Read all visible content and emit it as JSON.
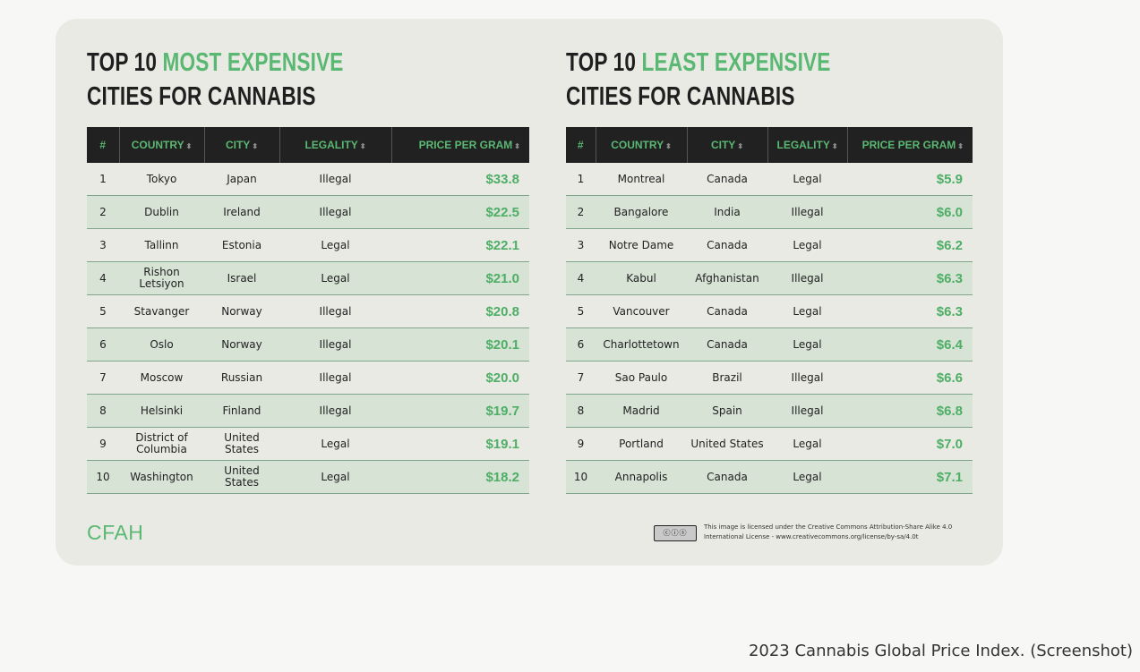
{
  "left_panel": {
    "title_prefix": "TOP 10 ",
    "title_accent": "MOST EXPENSIVE",
    "title_line2": "CITIES FOR CANNABIS",
    "headers": [
      "#",
      "COUNTRY",
      "CITY",
      "LEGALITY",
      "PRICE PER GRAM"
    ],
    "rows": [
      {
        "rank": "1",
        "country": "Tokyo",
        "city": "Japan",
        "legality": "Illegal",
        "price": "$33.8"
      },
      {
        "rank": "2",
        "country": "Dublin",
        "city": "Ireland",
        "legality": "Illegal",
        "price": "$22.5"
      },
      {
        "rank": "3",
        "country": "Tallinn",
        "city": "Estonia",
        "legality": "Legal",
        "price": "$22.1"
      },
      {
        "rank": "4",
        "country": "Rishon Letsiyon",
        "city": "Israel",
        "legality": "Legal",
        "price": "$21.0"
      },
      {
        "rank": "5",
        "country": "Stavanger",
        "city": "Norway",
        "legality": "Illegal",
        "price": "$20.8"
      },
      {
        "rank": "6",
        "country": "Oslo",
        "city": "Norway",
        "legality": "Illegal",
        "price": "$20.1"
      },
      {
        "rank": "7",
        "country": "Moscow",
        "city": "Russian",
        "legality": "Illegal",
        "price": "$20.0"
      },
      {
        "rank": "8",
        "country": "Helsinki",
        "city": "Finland",
        "legality": "Illegal",
        "price": "$19.7"
      },
      {
        "rank": "9",
        "country": "District of Columbia",
        "city": "United States",
        "legality": "Legal",
        "price": "$19.1"
      },
      {
        "rank": "10",
        "country": "Washington",
        "city": "United States",
        "legality": "Legal",
        "price": "$18.2"
      }
    ]
  },
  "right_panel": {
    "title_prefix": "TOP 10 ",
    "title_accent": "LEAST EXPENSIVE",
    "title_line2": "CITIES FOR CANNABIS",
    "headers": [
      "#",
      "COUNTRY",
      "CITY",
      "LEGALITY",
      "PRICE PER GRAM"
    ],
    "rows": [
      {
        "rank": "1",
        "country": "Montreal",
        "city": "Canada",
        "legality": "Legal",
        "price": "$5.9"
      },
      {
        "rank": "2",
        "country": "Bangalore",
        "city": "India",
        "legality": "Illegal",
        "price": "$6.0"
      },
      {
        "rank": "3",
        "country": "Notre Dame",
        "city": "Canada",
        "legality": "Legal",
        "price": "$6.2"
      },
      {
        "rank": "4",
        "country": "Kabul",
        "city": "Afghanistan",
        "legality": "Illegal",
        "price": "$6.3"
      },
      {
        "rank": "5",
        "country": "Vancouver",
        "city": "Canada",
        "legality": "Legal",
        "price": "$6.3"
      },
      {
        "rank": "6",
        "country": "Charlottetown",
        "city": "Canada",
        "legality": "Legal",
        "price": "$6.4"
      },
      {
        "rank": "7",
        "country": "Sao Paulo",
        "city": "Brazil",
        "legality": "Illegal",
        "price": "$6.6"
      },
      {
        "rank": "8",
        "country": "Madrid",
        "city": "Spain",
        "legality": "Illegal",
        "price": "$6.8"
      },
      {
        "rank": "9",
        "country": "Portland",
        "city": "United States",
        "legality": "Legal",
        "price": "$7.0"
      },
      {
        "rank": "10",
        "country": "Annapolis",
        "city": "Canada",
        "legality": "Legal",
        "price": "$7.1"
      }
    ]
  },
  "footer": {
    "logo": "CFAH",
    "license_line1": "This image is licensed under the Creative Commons Attribution-Share Alike 4.0",
    "license_line2": "International License - www.creativecommons.org/license/by-sa/4.0t"
  },
  "caption": "2023 Cannabis Global Price Index. (Screenshot)",
  "colors": {
    "accent": "#5ab873",
    "header_bg": "#212121",
    "stripe": "#d6e3d5",
    "card_bg": "#e9eae4"
  }
}
